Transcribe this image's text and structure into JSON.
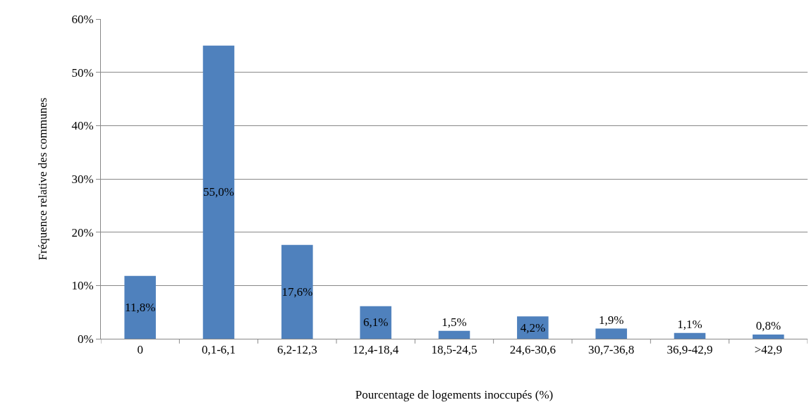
{
  "chart_data": {
    "type": "bar",
    "xlabel": "Pourcentage de logements inoccupés (%)",
    "ylabel": "Fréquence relative des communes",
    "categories": [
      "0",
      "0,1-6,1",
      "6,2-12,3",
      "12,4-18,4",
      "18,5-24,5",
      "24,6-30,6",
      "30,7-36,8",
      "36,9-42,9",
      ">42,9"
    ],
    "values": [
      11.8,
      55.0,
      17.6,
      6.1,
      1.5,
      4.2,
      1.9,
      1.1,
      0.8
    ],
    "value_labels": [
      "11,8%",
      "55,0%",
      "17,6%",
      "6,1%",
      "1,5%",
      "4,2%",
      "1,9%",
      "1,1%",
      "0,8%"
    ],
    "color": "#4f81bd",
    "ylim": [
      0,
      60
    ],
    "yticks": [
      {
        "value": 0,
        "label": "0%"
      },
      {
        "value": 10,
        "label": "10%"
      },
      {
        "value": 20,
        "label": "20%"
      },
      {
        "value": 30,
        "label": "30%"
      },
      {
        "value": 40,
        "label": "40%"
      },
      {
        "value": 50,
        "label": "50%"
      },
      {
        "value": 60,
        "label": "60%"
      }
    ],
    "grid": "y"
  }
}
